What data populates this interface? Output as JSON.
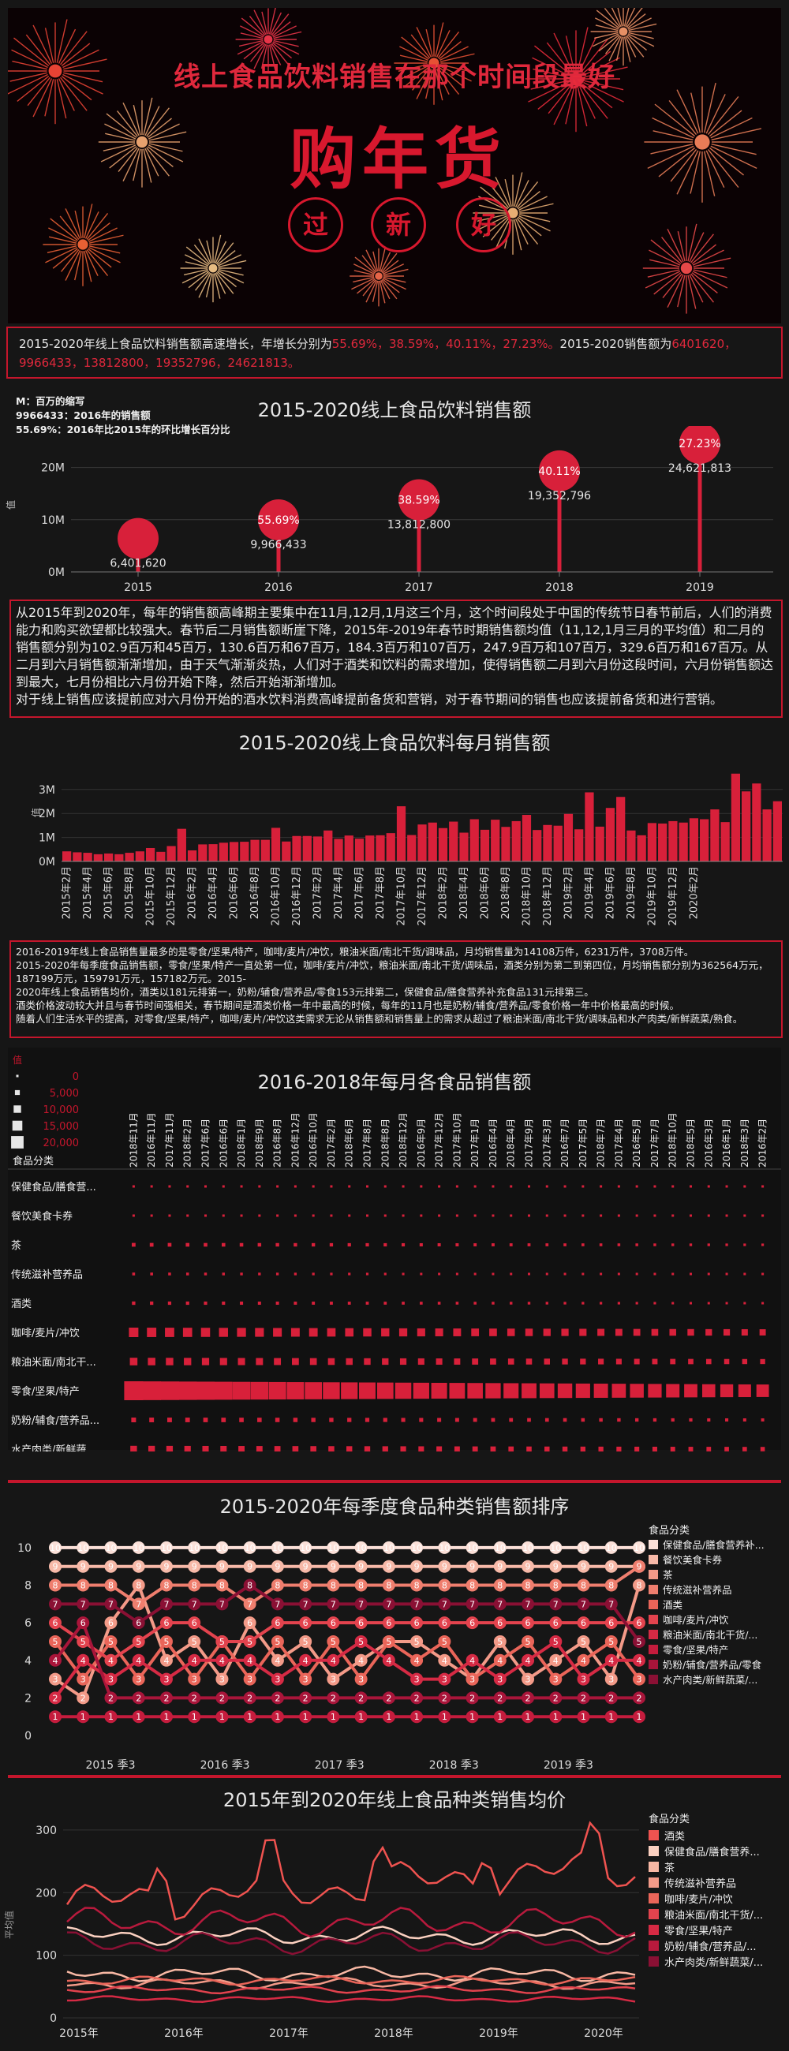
{
  "hero": {
    "title": "线上食品饮料销售在那个时间段最好",
    "big_text": "购年货",
    "lanterns": [
      "过",
      "新",
      "好"
    ]
  },
  "summary1": {
    "prefix": "2015-2020年线上食品饮料销售额高速增长，年增长分别为",
    "growth": "55.69%，38.59%，40.11%，27.23%。",
    "middle": "2015-2020销售额为",
    "values": "6401620，",
    "values2": "9966433，13812800，19352796，24621813。"
  },
  "legend_notes": [
    "M：百万的缩写",
    "9966433：2016年的销售额",
    "55.69%：2016年比2015年的环比增长百分比"
  ],
  "chart_data": [
    {
      "type": "scatter",
      "title": "2015-2020线上食品饮料销售额",
      "ylabel": "值",
      "ylim": [
        0,
        24621813
      ],
      "yticks": [
        "0M",
        "10M",
        "20M"
      ],
      "yticks_values": [
        0,
        10000000,
        20000000
      ],
      "categories": [
        "2015",
        "2016",
        "2017",
        "2018",
        "2019"
      ],
      "values": [
        6401620,
        9966433,
        13812800,
        19352796,
        24621813
      ],
      "value_labels": [
        "6,401,620",
        "9,966,433",
        "13,812,800",
        "19,352,796",
        "24,621,813"
      ],
      "growth_labels": [
        "",
        "55.69%",
        "38.59%",
        "40.11%",
        "27.23%"
      ]
    },
    {
      "type": "bar",
      "title": "2015-2020线上食品饮料每月销售额",
      "ylabel": "值",
      "ylim": [
        0,
        3750000
      ],
      "yticks": [
        "0M",
        "1M",
        "2M",
        "3M"
      ],
      "yticks_values": [
        0,
        1000000,
        2000000,
        3000000
      ],
      "tick_labels": [
        "2015年2月",
        "2015年4月",
        "2015年6月",
        "2015年8月",
        "2015年10月",
        "2015年12月",
        "2016年2月",
        "2016年4月",
        "2016年6月",
        "2016年8月",
        "2016年10月",
        "2016年12月",
        "2017年2月",
        "2017年4月",
        "2017年6月",
        "2017年8月",
        "2017年10月",
        "2017年12月",
        "2018年2月",
        "2018年4月",
        "2018年6月",
        "2018年8月",
        "2018年10月",
        "2018年12月",
        "2019年2月",
        "2019年4月",
        "2019年6月",
        "2019年8月",
        "2019年10月",
        "2019年12月",
        "2020年2月"
      ],
      "values": [
        420000,
        380000,
        360000,
        300000,
        330000,
        300000,
        360000,
        420000,
        560000,
        400000,
        640000,
        1360000,
        460000,
        710000,
        720000,
        780000,
        810000,
        820000,
        900000,
        900000,
        1400000,
        830000,
        1060000,
        1060000,
        1040000,
        1290000,
        940000,
        1080000,
        950000,
        1080000,
        1090000,
        1180000,
        2300000,
        1100000,
        1540000,
        1620000,
        1390000,
        1660000,
        1200000,
        1760000,
        1320000,
        1740000,
        1440000,
        1680000,
        1940000,
        1310000,
        1520000,
        1490000,
        1980000,
        1340000,
        2880000,
        1450000,
        2230000,
        2690000,
        1290000,
        1090000,
        1600000,
        1580000,
        1680000,
        1620000,
        1800000,
        1760000,
        2170000,
        1640000,
        3660000,
        2920000,
        3250000,
        2170000,
        2510000
      ],
      "last_value": 2510000
    },
    {
      "type": "heatmap",
      "title": "2016-2018年每月各食品销售额",
      "size_legend_title": "值",
      "size_legend": [
        "0",
        "5,000",
        "10,000",
        "15,000",
        "20,000"
      ],
      "row_header": "食品分类",
      "columns": [
        "2018年11月",
        "2016年11月",
        "2017年11月",
        "2018年2月",
        "2017年6月",
        "2016年6月",
        "2018年1月",
        "2018年9月",
        "2016年8月",
        "2016年12月",
        "2016年10月",
        "2017年2月",
        "2018年6月",
        "2017年8月",
        "2018年8月",
        "2018年12月",
        "2016年9月",
        "2017年12月",
        "2017年10月",
        "2017年1月",
        "2016年4月",
        "2018年4月",
        "2017年9月",
        "2017年3月",
        "2016年7月",
        "2017年5月",
        "2018年7月",
        "2017年4月",
        "2016年5月",
        "2017年7月",
        "2018年10月",
        "2018年5月",
        "2016年3月",
        "2016年1月",
        "2018年3月",
        "2016年2月"
      ],
      "rows": [
        "保健食品/膳食营...",
        "餐饮美食卡券",
        "茶",
        "传统滋补营养品",
        "酒类",
        "咖啡/麦片/冲饮",
        "粮油米面/南北干...",
        "零食/坚果/特产",
        "奶粉/辅食/营养品...",
        "水产肉类/新鲜蔬..."
      ],
      "row_levels": [
        0.1,
        0.05,
        0.2,
        0.15,
        0.18,
        0.5,
        0.4,
        1.0,
        0.25,
        0.35
      ]
    },
    {
      "type": "line",
      "title": "2015-2020年每季度食品种类销售额排序",
      "yticks": [
        "0",
        "2",
        "4",
        "6",
        "8",
        "10"
      ],
      "yticks_values": [
        0,
        2,
        4,
        6,
        8,
        10
      ],
      "ylim": [
        0,
        10.5
      ],
      "xticks": [
        "2015 季3",
        "2016 季3",
        "2017 季3",
        "2018 季3",
        "2019 季3"
      ],
      "legend_title": "食品分类",
      "series": [
        {
          "name": "保健食品/膳食营养补...",
          "color": "#fbe0d8",
          "values": [
            10,
            10,
            10,
            10,
            10,
            10,
            10,
            10,
            10,
            10,
            10,
            10,
            10,
            10,
            10,
            10,
            10,
            10,
            10,
            10,
            10,
            10
          ]
        },
        {
          "name": "餐饮美食卡券",
          "color": "#f7b9a8",
          "values": [
            9,
            9,
            9,
            9,
            9,
            9,
            9,
            9,
            9,
            9,
            9,
            9,
            9,
            9,
            9,
            9,
            9,
            9,
            9,
            9,
            9,
            9
          ]
        },
        {
          "name": "茶",
          "color": "#f39a88",
          "values": [
            3,
            2,
            6,
            8,
            4,
            5,
            3,
            6,
            4,
            5,
            3,
            4,
            5,
            5,
            4,
            3,
            5,
            3,
            4,
            5,
            3,
            8
          ]
        },
        {
          "name": "传统滋补营养品",
          "color": "#ef7e6e",
          "values": [
            8,
            8,
            8,
            7,
            8,
            8,
            8,
            7,
            8,
            8,
            8,
            8,
            8,
            8,
            8,
            8,
            8,
            8,
            8,
            8,
            8,
            9
          ]
        },
        {
          "name": "酒类",
          "color": "#ea6559",
          "values": [
            5,
            3,
            5,
            3,
            5,
            3,
            5,
            3,
            5,
            3,
            5,
            3,
            5,
            4,
            5,
            3,
            4,
            5,
            3,
            4,
            5,
            3
          ]
        },
        {
          "name": "咖啡/麦片/冲饮",
          "color": "#e3434e",
          "values": [
            6,
            5,
            4,
            5,
            6,
            6,
            5,
            5,
            6,
            6,
            6,
            6,
            6,
            6,
            6,
            6,
            6,
            6,
            6,
            6,
            6,
            6
          ]
        },
        {
          "name": "粮油米面/南北干货/...",
          "color": "#d62a44",
          "values": [
            2,
            4,
            3,
            4,
            3,
            4,
            4,
            4,
            3,
            4,
            4,
            5,
            4,
            3,
            3,
            4,
            3,
            4,
            5,
            3,
            4,
            4
          ]
        },
        {
          "name": "零食/坚果/特产",
          "color": "#c51c3d",
          "values": [
            1,
            1,
            1,
            1,
            1,
            1,
            1,
            1,
            1,
            1,
            1,
            1,
            1,
            1,
            1,
            1,
            1,
            1,
            1,
            1,
            1,
            1
          ]
        },
        {
          "name": "奶粉/辅食/营养品/零食",
          "color": "#a9153a",
          "values": [
            4,
            6,
            2,
            2,
            2,
            2,
            2,
            2,
            2,
            2,
            2,
            2,
            2,
            2,
            2,
            2,
            2,
            2,
            2,
            2,
            2,
            2
          ]
        },
        {
          "name": "水产肉类/新鲜蔬菜/...",
          "color": "#8a1034",
          "values": [
            7,
            7,
            7,
            6,
            7,
            7,
            7,
            8,
            7,
            7,
            7,
            7,
            7,
            7,
            7,
            7,
            7,
            7,
            7,
            7,
            7,
            5
          ]
        }
      ]
    },
    {
      "type": "line",
      "title": "2015年到2020年线上食品种类销售均价",
      "ylabel": "平均值",
      "yticks": [
        "0",
        "100",
        "200",
        "300"
      ],
      "yticks_values": [
        0,
        100,
        200,
        300
      ],
      "ylim": [
        0,
        310
      ],
      "xticks": [
        "2015年",
        "2016年",
        "2017年",
        "2018年",
        "2019年",
        "2020年"
      ],
      "legend_title": "食品分类",
      "series": [
        {
          "name": "酒类",
          "color": "#ef5350"
        },
        {
          "name": "保健食品/膳食营养...",
          "color": "#fbd0c0"
        },
        {
          "name": "茶",
          "color": "#f8b8a4"
        },
        {
          "name": "传统滋补营养品",
          "color": "#f39a88"
        },
        {
          "name": "咖啡/麦片/冲饮",
          "color": "#ea6559"
        },
        {
          "name": "粮油米面/南北干货/...",
          "color": "#e3434e"
        },
        {
          "name": "零食/坚果/特产",
          "color": "#d62a44"
        },
        {
          "name": "奶粉/辅食/营养品/...",
          "color": "#b81a3d"
        },
        {
          "name": "水产肉类/新鲜蔬菜/...",
          "color": "#8a1034"
        }
      ]
    }
  ],
  "paragraph1": "从2015年到2020年，每年的销售额高峰期主要集中在11月,12月,1月这三个月，这个时间段处于中国的传统节日春节前后，人们的消费能力和购买欲望都比较强大。春节后二月销售额断崖下降，2015年-2019年春节时期销售额均值（11,12,1月三月的平均值）和二月的销售额分别为102.9百万和45百万，130.6百万和67百万，184.3百万和107百万，247.9百万和107百万，329.6百万和167百万。从二月到六月销售额渐渐增加，由于天气渐渐炎热，人们对于酒类和饮料的需求增加，使得销售额二月到六月份这段时间，六月份销售额达到最大，七月份相比六月份开始下降，然后开始渐渐增加。",
  "paragraph1b": "对于线上销售应该提前应对六月份开始的酒水饮料消费高峰提前备货和营销，对于春节期间的销售也应该提前备货和进行营销。",
  "paragraph2": [
    "2016-2019年线上食品销售量最多的是零食/坚果/特产，咖啡/麦片/冲饮，粮油米面/南北干货/调味品，月均销售量为14108万件，6231万件，3708万件。",
    "2015-2020年每季度食品销售额，零食/坚果/特产一直处第一位，咖啡/麦片/冲饮，粮油米面/南北干货/调味品，酒类分别为第二到第四位，月均销售额分别为362564万元，187199万元，159791万元，157182万元。2015-",
    "2020年线上食品销售均价，酒类以181元排第一，奶粉/辅食/营养品/零食153元排第二，保健食品/膳食营养补充食品131元排第三。",
    "酒类价格波动较大并且与春节时间强相关，春节期间是酒类价格一年中最高的时候，每年的11月也是奶粉/辅食/营养品/零食价格一年中价格最高的时候。",
    "随着人们生活水平的提高，对零食/坚果/特产，咖啡/麦片/冲饮这类需求无论从销售额和销售量上的需求从超过了粮油米面/南北干货/调味品和水产肉类/新鲜蔬菜/熟食。"
  ],
  "colors": {
    "accent": "#e0283c",
    "bar": "#d8203a",
    "bg": "#161616",
    "border": "#c4162c"
  }
}
